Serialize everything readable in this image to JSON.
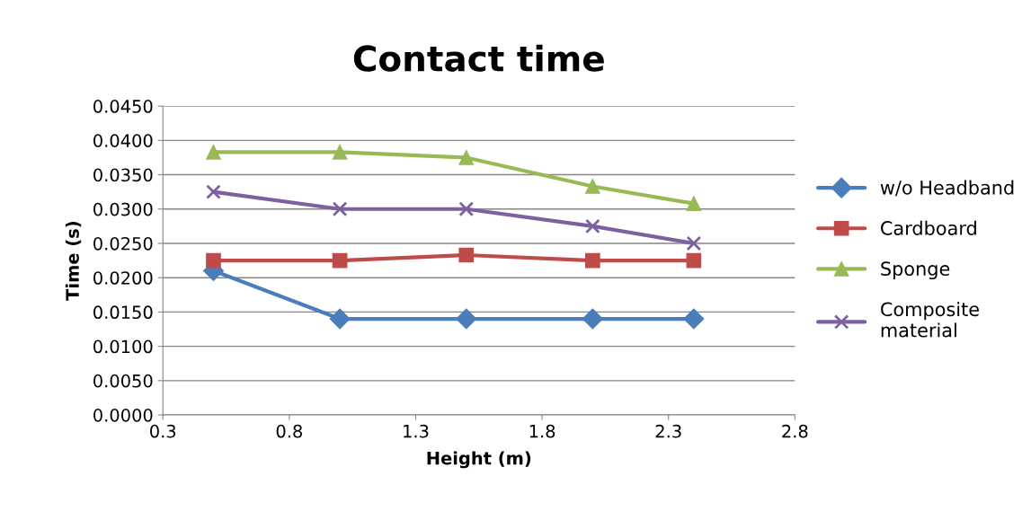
{
  "chart_data": {
    "type": "line",
    "title": "Contact time",
    "xlabel": "Height (m)",
    "ylabel": "Time (s)",
    "x": [
      0.5,
      1.0,
      1.5,
      2.0,
      2.4
    ],
    "series": [
      {
        "name": "w/o Headband",
        "color": "#4a7ebb",
        "marker": "diamond",
        "values": [
          0.021,
          0.014,
          0.014,
          0.014,
          0.014
        ]
      },
      {
        "name": "Cardboard",
        "color": "#be4b48",
        "marker": "square",
        "values": [
          0.0225,
          0.0225,
          0.0233,
          0.0225,
          0.0225
        ]
      },
      {
        "name": "Sponge",
        "color": "#98b954",
        "marker": "triangle",
        "values": [
          0.0383,
          0.0383,
          0.0375,
          0.0333,
          0.0308
        ]
      },
      {
        "name": "Composite\nmaterial",
        "color": "#7d60a0",
        "marker": "cross",
        "values": [
          0.0325,
          0.03,
          0.03,
          0.0275,
          0.025
        ]
      }
    ],
    "xlim": [
      0.3,
      2.8
    ],
    "xticks": [
      0.3,
      0.8,
      1.3,
      1.8,
      2.3,
      2.8
    ],
    "ylim": [
      0,
      0.045
    ],
    "yticks": [
      {
        "value": 0,
        "label": "0.0000"
      },
      {
        "value": 0.005,
        "label": "0.0050"
      },
      {
        "value": 0.01,
        "label": "0.0100"
      },
      {
        "value": 0.015,
        "label": "0.0150"
      },
      {
        "value": 0.02,
        "label": "0.0200"
      },
      {
        "value": 0.025,
        "label": "0.0250"
      },
      {
        "value": 0.03,
        "label": "0.0300"
      },
      {
        "value": 0.035,
        "label": "0.0350"
      },
      {
        "value": 0.04,
        "label": "0.0400"
      },
      {
        "value": 0.045,
        "label": "0.0450"
      }
    ],
    "grid": "y",
    "legend": "right",
    "line_style": "solid"
  }
}
